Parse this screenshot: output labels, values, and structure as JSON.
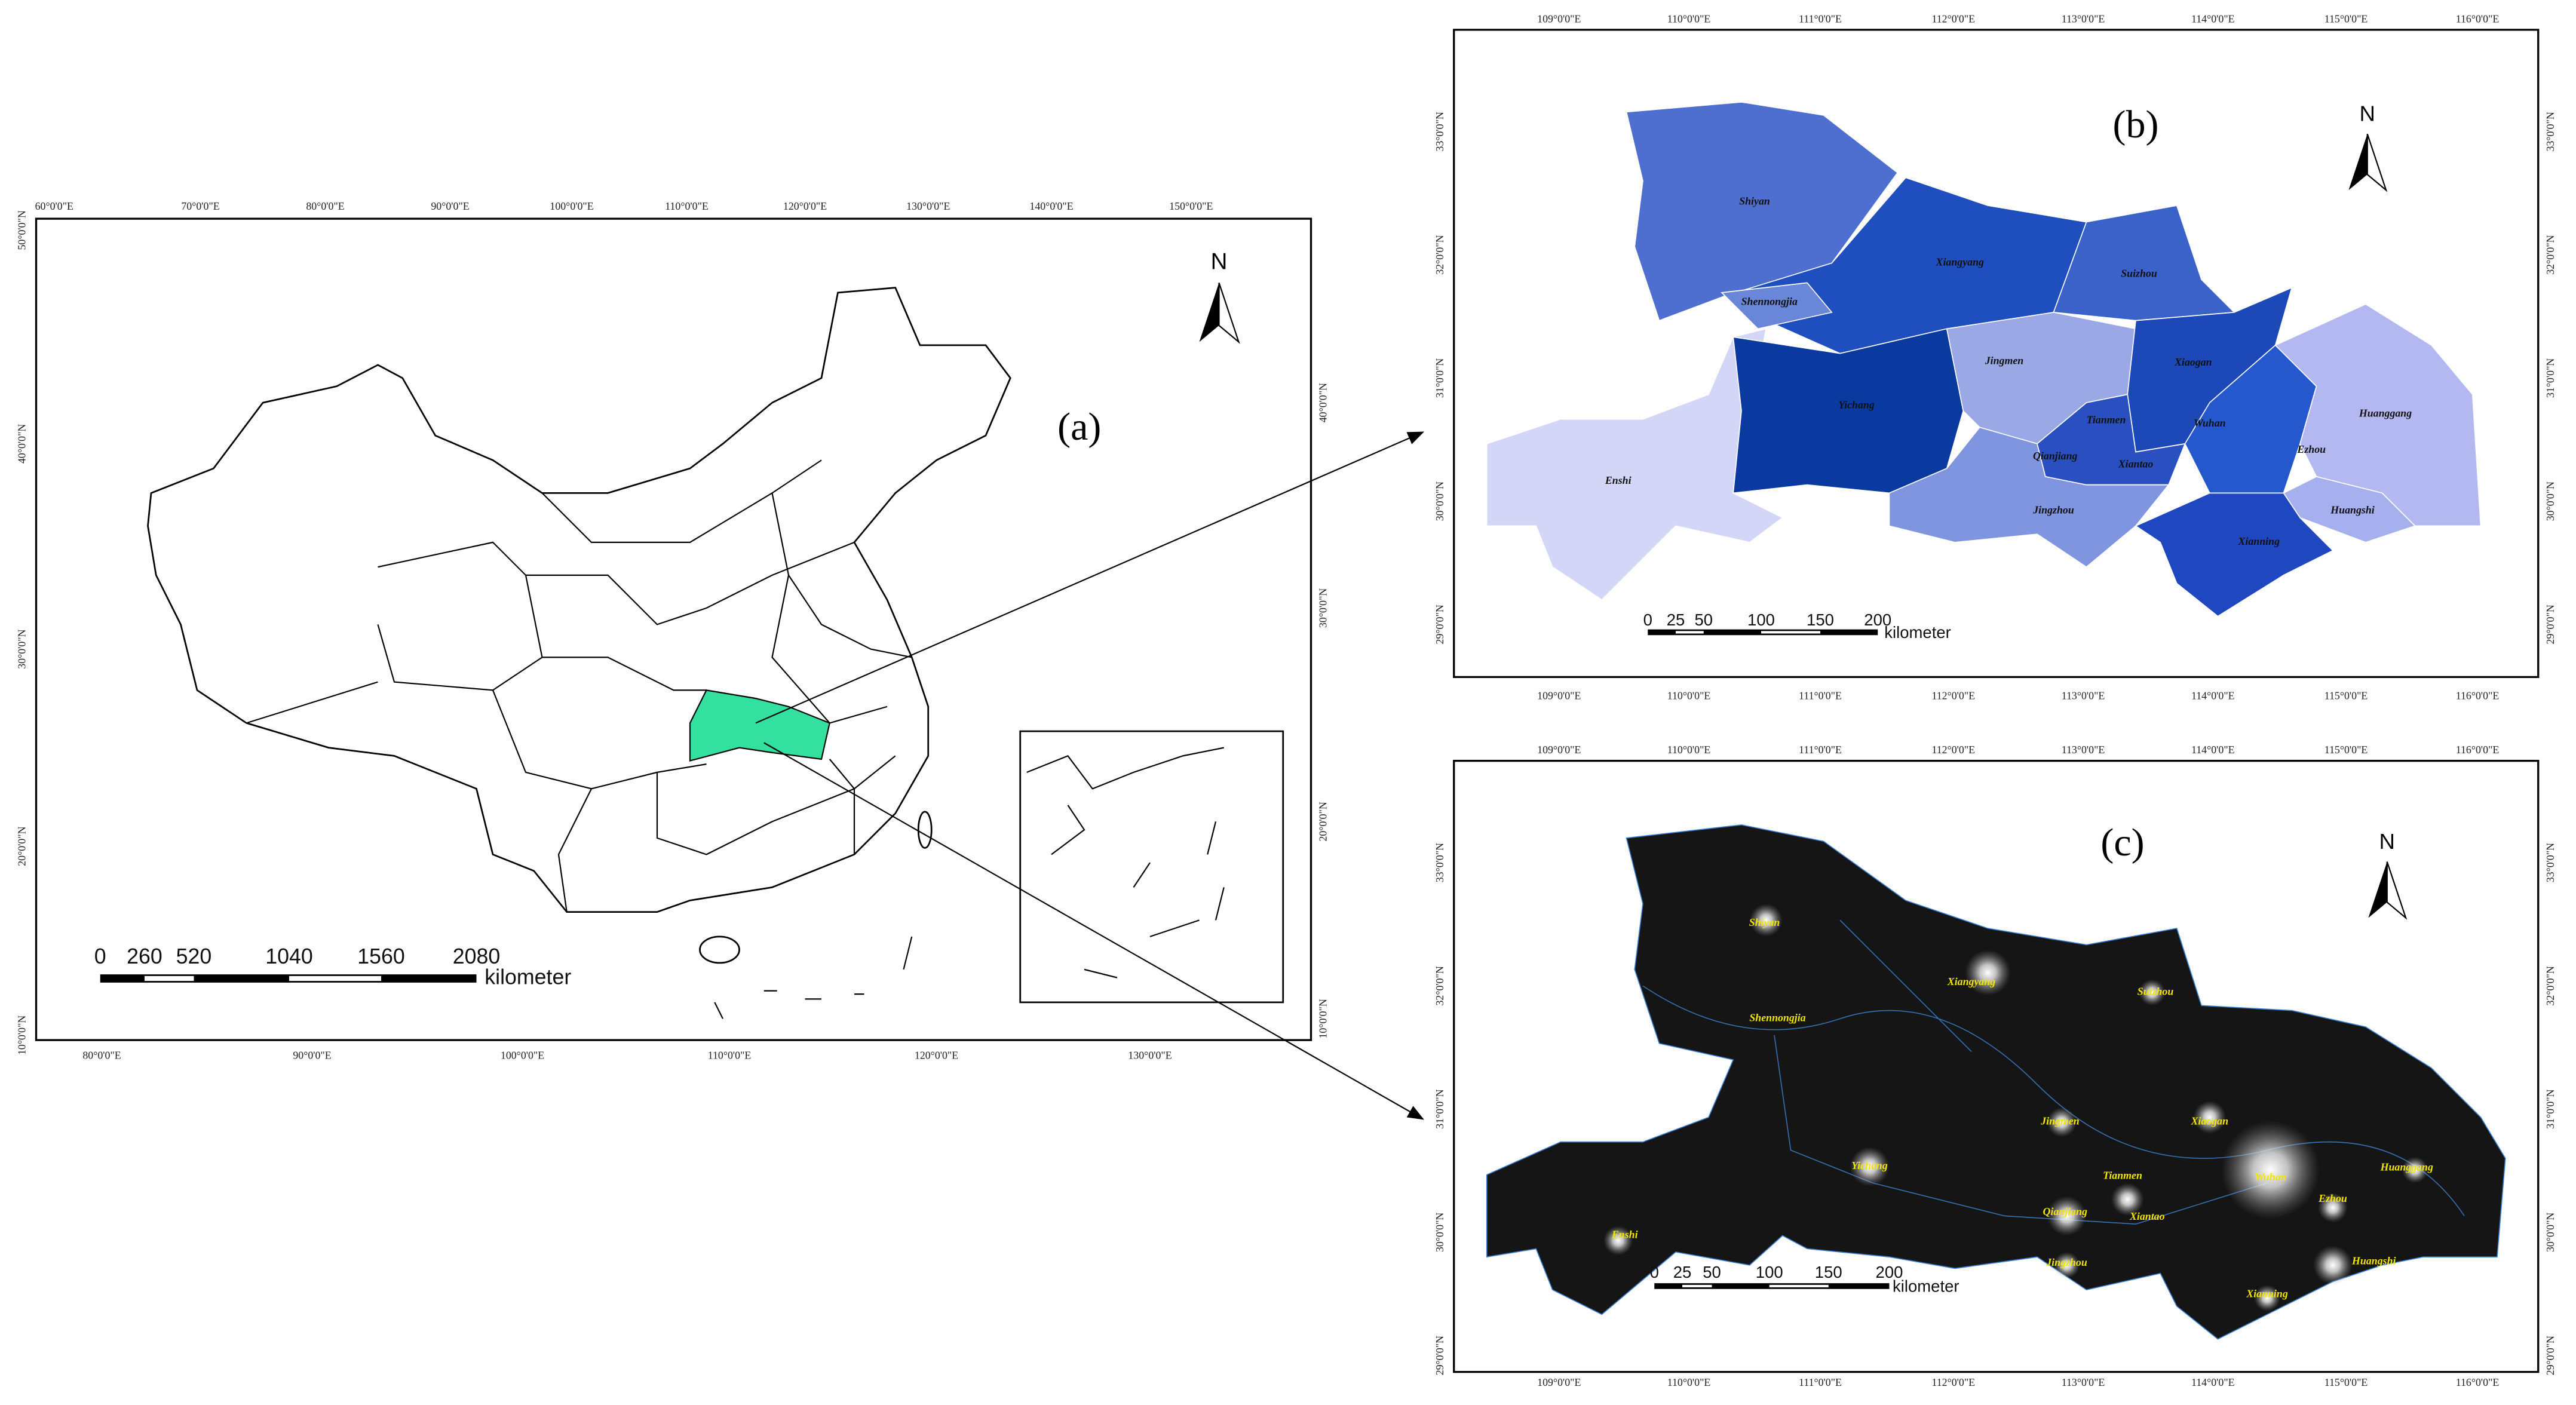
{
  "panels": [
    {
      "label": "(a)",
      "top_labels": [
        "60°0'0\"E",
        "70°0'0\"E",
        "80°0'0\"E",
        "90°0'0\"E",
        "100°0'0\"E",
        "110°0'0\"E",
        "120°0'0\"E",
        "130°0'0\"E",
        "140°0'0\"E",
        "150°0'0\"E"
      ],
      "bottom_labels": [
        "80°0'0\"E",
        "90°0'0\"E",
        "100°0'0\"E",
        "110°0'0\"E",
        "120°0'0\"E",
        "130°0'0\"E"
      ],
      "left_labels": [
        "50°0'0\"N",
        "40°0'0\"N",
        "30°0'0\"N",
        "20°0'0\"N",
        "10°0'0\"N"
      ],
      "right_labels": [
        "40°0'0\"N",
        "30°0'0\"N",
        "20°0'0\"N",
        "10°0'0\"N"
      ],
      "scale_labels": [
        0,
        260,
        520,
        1040,
        1560,
        2080
      ],
      "scale_unit": "kilometer",
      "north": "N"
    },
    {
      "label": "(b)",
      "top_labels": [
        "109°0'0\"E",
        "110°0'0\"E",
        "111°0'0\"E",
        "112°0'0\"E",
        "113°0'0\"E",
        "114°0'0\"E",
        "115°0'0\"E",
        "116°0'0\"E"
      ],
      "bottom_labels": [
        "109°0'0\"E",
        "110°0'0\"E",
        "111°0'0\"E",
        "112°0'0\"E",
        "113°0'0\"E",
        "114°0'0\"E",
        "115°0'0\"E",
        "116°0'0\"E"
      ],
      "left_labels": [
        "33°0'0\"N",
        "32°0'0\"N",
        "31°0'0\"N",
        "30°0'0\"N",
        "29°0'0\"N"
      ],
      "right_labels": [
        "33°0'0\"N",
        "32°0'0\"N",
        "31°0'0\"N",
        "30°0'0\"N",
        "29°0'0\"N"
      ],
      "scale_labels": [
        0,
        25,
        50,
        100,
        150,
        200
      ],
      "scale_unit": "kilometer",
      "north": "N",
      "cities": [
        "Shiyan",
        "Xiangyang",
        "Suizhou",
        "Shennongjia",
        "Jingmen",
        "Xiaogan",
        "Yichang",
        "Tianmen",
        "Wuhan",
        "Huanggang",
        "Ezhou",
        "Enshi",
        "Qianjiang",
        "Xiantao",
        "Jingzhou",
        "Huangshi",
        "Xianning"
      ]
    },
    {
      "label": "(c)",
      "top_labels": [
        "109°0'0\"E",
        "110°0'0\"E",
        "111°0'0\"E",
        "112°0'0\"E",
        "113°0'0\"E",
        "114°0'0\"E",
        "115°0'0\"E",
        "116°0'0\"E"
      ],
      "bottom_labels": [
        "109°0'0\"E",
        "110°0'0\"E",
        "111°0'0\"E",
        "112°0'0\"E",
        "113°0'0\"E",
        "114°0'0\"E",
        "115°0'0\"E",
        "116°0'0\"E"
      ],
      "left_labels": [
        "33°0'0\"N",
        "32°0'0\"N",
        "31°0'0\"N",
        "30°0'0\"N",
        "29°0'0\"N"
      ],
      "right_labels": [
        "33°0'0\"N",
        "32°0'0\"N",
        "31°0'0\"N",
        "30°0'0\"N",
        "29°0'0\"N"
      ],
      "scale_labels": [
        0,
        25,
        50,
        100,
        150,
        200
      ],
      "scale_unit": "kilometer",
      "north": "N",
      "cities": [
        "Shiyan",
        "Xiangyang",
        "Suizhou",
        "Shennongjia",
        "Jingmen",
        "Xiaogan",
        "Yichang",
        "Tianmen",
        "Wuhan",
        "Huanggang",
        "Ezhou",
        "Enshi",
        "Qianjiang",
        "Xiantao",
        "Jingzhou",
        "Huangshi",
        "Xianning"
      ]
    }
  ]
}
